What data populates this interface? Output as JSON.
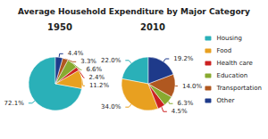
{
  "chart_data": {
    "type": "pie",
    "title": "Average Household Expenditure by Major Category",
    "categories": [
      "Housing",
      "Food",
      "Health care",
      "Education",
      "Transportation",
      "Other"
    ],
    "colors": [
      "#2ab0b8",
      "#e8a020",
      "#cc2222",
      "#88aa30",
      "#b05820",
      "#1e3a8a"
    ],
    "series": [
      {
        "name": "1950",
        "values": [
          72.1,
          11.2,
          2.4,
          6.6,
          3.3,
          4.4
        ],
        "value_labels": [
          "72.1%",
          "11.2%",
          "2.4%",
          "6.6%",
          "3.3%",
          "4.4%"
        ]
      },
      {
        "name": "2010",
        "values": [
          22.0,
          34.0,
          4.5,
          6.3,
          14.0,
          19.2
        ],
        "value_labels": [
          "22.0%",
          "34.0%",
          "4.5%",
          "6.3%",
          "14.0%",
          "19.2%"
        ]
      }
    ],
    "data_labels": true,
    "legend": "right"
  }
}
